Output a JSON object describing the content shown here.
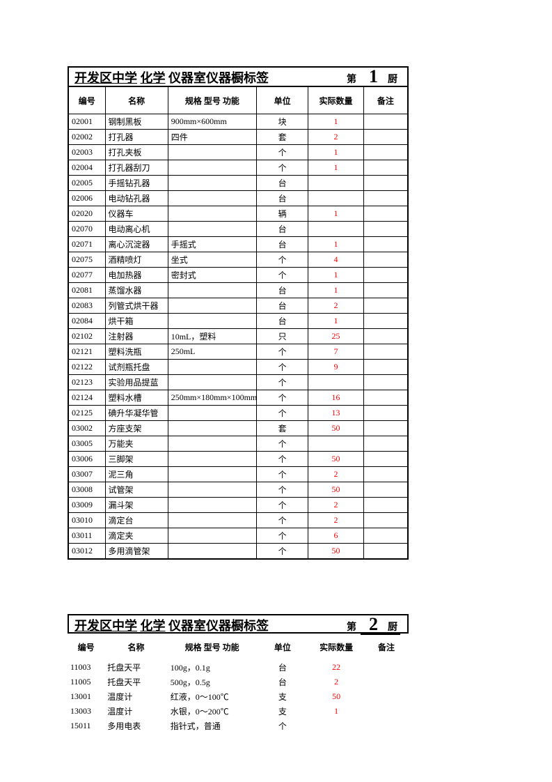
{
  "table1": {
    "title_parts": {
      "school": "开发区中学",
      "subject": "化学",
      "rest": "仪器室仪器橱标签",
      "prefix": "第",
      "number": "1",
      "suffix": "厨"
    },
    "headers": [
      "编号",
      "名称",
      "规格 型号 功能",
      "单位",
      "实际数量",
      "备注"
    ],
    "rows": [
      [
        "02001",
        "钢制黑板",
        "900mm×600mm",
        "块",
        "1",
        ""
      ],
      [
        "02002",
        "打孔器",
        "四件",
        "套",
        "2",
        ""
      ],
      [
        "02003",
        "打孔夹板",
        "",
        "个",
        "1",
        ""
      ],
      [
        "02004",
        "打孔器刮刀",
        "",
        "个",
        "1",
        ""
      ],
      [
        "02005",
        "手摇钻孔器",
        "",
        "台",
        "",
        ""
      ],
      [
        "02006",
        "电动钻孔器",
        "",
        "台",
        "",
        ""
      ],
      [
        "02020",
        "仪器车",
        "",
        "辆",
        "1",
        ""
      ],
      [
        "02070",
        "电动离心机",
        "",
        "台",
        "",
        ""
      ],
      [
        "02071",
        "离心沉淀器",
        "手摇式",
        "台",
        "1",
        ""
      ],
      [
        "02075",
        "酒精喷灯",
        "坐式",
        "个",
        "4",
        ""
      ],
      [
        "02077",
        "电加热器",
        "密封式",
        "个",
        "1",
        ""
      ],
      [
        "02081",
        "蒸馏水器",
        "",
        "台",
        "1",
        ""
      ],
      [
        "02083",
        "列管式烘干器",
        "",
        "台",
        "2",
        ""
      ],
      [
        "02084",
        "烘干箱",
        "",
        "台",
        "1",
        ""
      ],
      [
        "02102",
        "注射器",
        "10mL，塑料",
        "只",
        "25",
        ""
      ],
      [
        "02121",
        "塑料洗瓶",
        "250mL",
        "个",
        "7",
        ""
      ],
      [
        "02122",
        "试剂瓶托盘",
        "",
        "个",
        "9",
        ""
      ],
      [
        "02123",
        "实验用品提蓝",
        "",
        "个",
        "",
        ""
      ],
      [
        "02124",
        "塑料水槽",
        "250mm×180mm×100mm",
        "个",
        "16",
        ""
      ],
      [
        "02125",
        "碘升华凝华管",
        "",
        "个",
        "13",
        ""
      ],
      [
        "03002",
        "方座支架",
        "",
        "套",
        "50",
        ""
      ],
      [
        "03005",
        "万能夹",
        "",
        "个",
        "",
        ""
      ],
      [
        "03006",
        "三脚架",
        "",
        "个",
        "50",
        ""
      ],
      [
        "03007",
        "泥三角",
        "",
        "个",
        "2",
        ""
      ],
      [
        "03008",
        "试管架",
        "",
        "个",
        "50",
        ""
      ],
      [
        "03009",
        "漏斗架",
        "",
        "个",
        "2",
        ""
      ],
      [
        "03010",
        "滴定台",
        "",
        "个",
        "2",
        ""
      ],
      [
        "03011",
        "滴定夹",
        "",
        "个",
        "6",
        ""
      ],
      [
        "03012",
        "多用滴管架",
        "",
        "个",
        "50",
        ""
      ]
    ]
  },
  "table2": {
    "title_parts": {
      "school": "开发区中学",
      "subject": "化学",
      "rest": "仪器室仪器橱标签",
      "prefix": "第",
      "number": "2",
      "suffix": "厨"
    },
    "headers": [
      "编号",
      "名称",
      "规格 型号 功能",
      "单位",
      "实际数量",
      "备注"
    ],
    "rows": [
      [
        "11003",
        "托盘天平",
        "100g，0.1g",
        "台",
        "22",
        ""
      ],
      [
        "11005",
        "托盘天平",
        "500g，0.5g",
        "台",
        "2",
        ""
      ],
      [
        "13001",
        "温度计",
        "红液，0～100℃",
        "支",
        "50",
        ""
      ],
      [
        "13003",
        "温度计",
        "水银，0～200℃",
        "支",
        "1",
        ""
      ],
      [
        "15011",
        "多用电表",
        "指针式，普通",
        "个",
        "",
        ""
      ]
    ]
  }
}
